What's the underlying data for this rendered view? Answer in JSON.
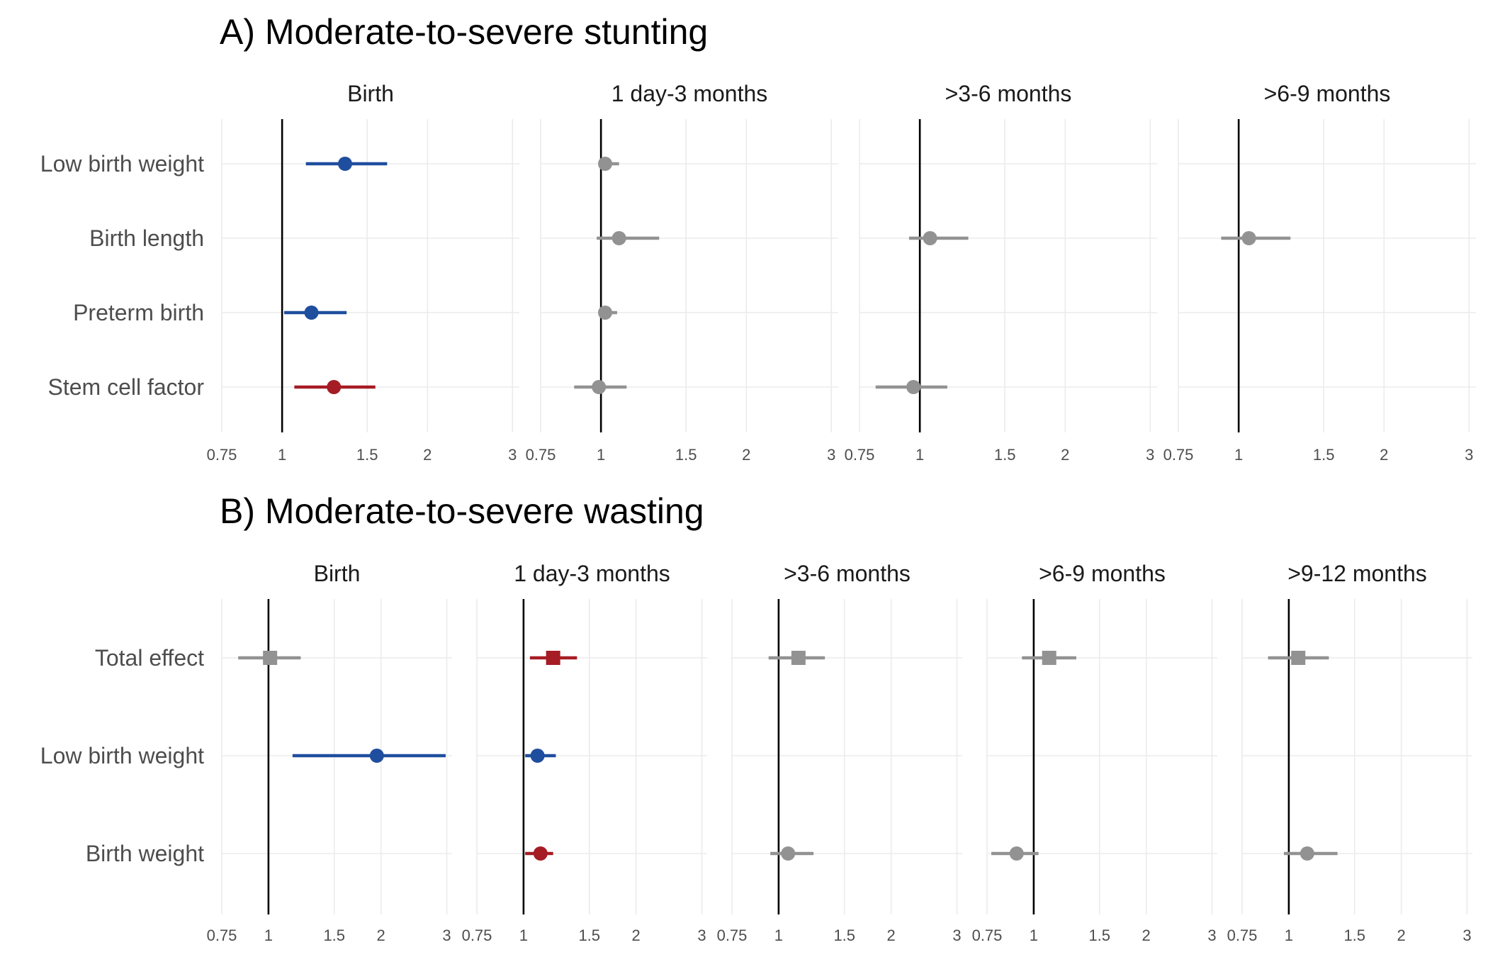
{
  "colors": {
    "significant_protective": "#1f4e9e",
    "significant_risk": "#a61c24",
    "non_significant": "#929292"
  },
  "chart_data": [
    {
      "type": "forest",
      "title": "A) Moderate-to-severe stunting",
      "x_scale": "log",
      "x_ticks": [
        0.75,
        1,
        1.5,
        2,
        3
      ],
      "xlim": [
        0.75,
        3.1
      ],
      "reference_value": 1,
      "rows": [
        "Low birth weight",
        "Birth length",
        "Preterm birth",
        "Stem cell factor"
      ],
      "facets": [
        {
          "label": "Birth",
          "points": [
            {
              "row": "Low birth weight",
              "est": 1.35,
              "lo": 1.12,
              "hi": 1.65,
              "color": "significant_protective",
              "shape": "circle"
            },
            {
              "row": "Preterm birth",
              "est": 1.15,
              "lo": 1.01,
              "hi": 1.36,
              "color": "significant_protective",
              "shape": "circle"
            },
            {
              "row": "Stem cell factor",
              "est": 1.28,
              "lo": 1.06,
              "hi": 1.56,
              "color": "significant_risk",
              "shape": "circle"
            }
          ]
        },
        {
          "label": "1 day-3 months",
          "points": [
            {
              "row": "Low birth weight",
              "est": 1.02,
              "lo": 0.99,
              "hi": 1.09,
              "color": "non_significant",
              "shape": "circle"
            },
            {
              "row": "Birth length",
              "est": 1.09,
              "lo": 0.98,
              "hi": 1.32,
              "color": "non_significant",
              "shape": "circle"
            },
            {
              "row": "Preterm birth",
              "est": 1.02,
              "lo": 0.99,
              "hi": 1.08,
              "color": "non_significant",
              "shape": "circle"
            },
            {
              "row": "Stem cell factor",
              "est": 0.99,
              "lo": 0.88,
              "hi": 1.13,
              "color": "non_significant",
              "shape": "circle"
            }
          ]
        },
        {
          "label": ">3-6 months",
          "points": [
            {
              "row": "Birth length",
              "est": 1.05,
              "lo": 0.95,
              "hi": 1.26,
              "color": "non_significant",
              "shape": "circle"
            },
            {
              "row": "Stem cell factor",
              "est": 0.97,
              "lo": 0.81,
              "hi": 1.14,
              "color": "non_significant",
              "shape": "circle"
            }
          ]
        },
        {
          "label": ">6-9 months",
          "points": [
            {
              "row": "Birth length",
              "est": 1.05,
              "lo": 0.92,
              "hi": 1.28,
              "color": "non_significant",
              "shape": "circle"
            }
          ]
        }
      ]
    },
    {
      "type": "forest",
      "title": "B) Moderate-to-severe wasting",
      "x_scale": "log",
      "x_ticks": [
        0.75,
        1,
        1.5,
        2,
        3
      ],
      "xlim": [
        0.75,
        3.1
      ],
      "reference_value": 1,
      "rows": [
        "Total effect",
        "Low birth weight",
        "Birth weight"
      ],
      "facets": [
        {
          "label": "Birth",
          "points": [
            {
              "row": "Total effect",
              "est": 1.01,
              "lo": 0.83,
              "hi": 1.22,
              "color": "non_significant",
              "shape": "square"
            },
            {
              "row": "Low birth weight",
              "est": 1.95,
              "lo": 1.16,
              "hi": 2.98,
              "color": "significant_protective",
              "shape": "circle"
            },
            {
              "row": "Birth weight",
              "est": null,
              "lo": null,
              "hi": null,
              "color": "non_significant",
              "shape": "circle"
            }
          ]
        },
        {
          "label": "1 day-3 months",
          "points": [
            {
              "row": "Total effect",
              "est": 1.2,
              "lo": 1.04,
              "hi": 1.39,
              "color": "significant_risk",
              "shape": "square"
            },
            {
              "row": "Low birth weight",
              "est": 1.09,
              "lo": 1.01,
              "hi": 1.22,
              "color": "significant_protective",
              "shape": "circle"
            },
            {
              "row": "Birth weight",
              "est": 1.11,
              "lo": 1.01,
              "hi": 1.2,
              "color": "significant_risk",
              "shape": "circle"
            }
          ]
        },
        {
          "label": ">3-6 months",
          "points": [
            {
              "row": "Total effect",
              "est": 1.13,
              "lo": 0.94,
              "hi": 1.33,
              "color": "non_significant",
              "shape": "square"
            },
            {
              "row": "Birth weight",
              "est": 1.06,
              "lo": 0.95,
              "hi": 1.24,
              "color": "non_significant",
              "shape": "circle"
            }
          ]
        },
        {
          "label": ">6-9 months",
          "points": [
            {
              "row": "Total effect",
              "est": 1.1,
              "lo": 0.93,
              "hi": 1.3,
              "color": "non_significant",
              "shape": "square"
            },
            {
              "row": "Birth weight",
              "est": 0.9,
              "lo": 0.77,
              "hi": 1.03,
              "color": "non_significant",
              "shape": "circle"
            }
          ]
        },
        {
          "label": ">9-12 months",
          "points": [
            {
              "row": "Total effect",
              "est": 1.06,
              "lo": 0.88,
              "hi": 1.28,
              "color": "non_significant",
              "shape": "square"
            },
            {
              "row": "Birth weight",
              "est": 1.12,
              "lo": 0.97,
              "hi": 1.35,
              "color": "non_significant",
              "shape": "circle"
            }
          ]
        }
      ]
    }
  ]
}
